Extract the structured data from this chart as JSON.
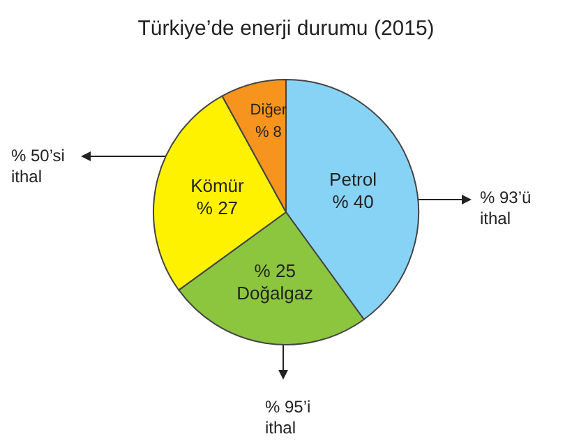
{
  "chart_data": {
    "type": "pie",
    "title": "Türkiye’de enerji durumu (2015)",
    "categories": [
      "Petrol",
      "Doğalgaz",
      "Kömür",
      "Diğer"
    ],
    "values": [
      40,
      25,
      27,
      8
    ],
    "colors": [
      "#87d3f5",
      "#8cc63f",
      "#fff200",
      "#f7941d"
    ],
    "value_labels": [
      "% 40",
      "% 25",
      "% 27",
      "% 8"
    ],
    "legend": false,
    "annotations": [
      "% 93’ü\nithal",
      "% 95’i\nithal",
      "% 50’si\nithal"
    ]
  }
}
